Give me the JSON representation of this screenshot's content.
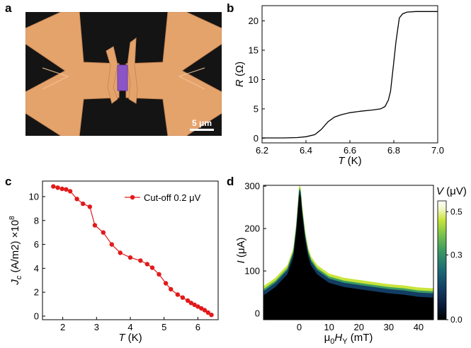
{
  "figure": {
    "panel_labels": [
      "a",
      "b",
      "c",
      "d"
    ],
    "image_a": {
      "scalebar_label": "5 μm",
      "subject": "false-colored SEM micrograph of gold electrodes with a purple flake bridging the gap",
      "colors": {
        "background": "#141414",
        "electrode": "#e5a36c",
        "flake": "#8b55c7"
      }
    }
  },
  "chart_data": [
    {
      "type": "line",
      "panel": "b",
      "xlabel_italic": "T",
      "xlabel_unit": " (K)",
      "ylabel_italic": "R",
      "ylabel_unit": " (Ω)",
      "xlim": [
        6.2,
        7.0
      ],
      "ylim": [
        -0.8,
        22.6
      ],
      "xticks": [
        6.2,
        6.4,
        6.6,
        6.8,
        7.0
      ],
      "xtick_labels": [
        "6.2",
        "6.4",
        "6.6",
        "6.8",
        "7.0"
      ],
      "yticks": [
        0,
        5,
        10,
        15,
        20
      ],
      "ytick_labels": [
        "0",
        "5",
        "10",
        "15",
        "20"
      ],
      "x": [
        6.2,
        6.3,
        6.36,
        6.4,
        6.44,
        6.47,
        6.5,
        6.53,
        6.56,
        6.6,
        6.65,
        6.7,
        6.74,
        6.76,
        6.775,
        6.785,
        6.8,
        6.81,
        6.825,
        6.84,
        6.86,
        6.9,
        7.0
      ],
      "y": [
        0.05,
        0.05,
        0.1,
        0.25,
        0.6,
        1.5,
        2.8,
        3.6,
        4.0,
        4.35,
        4.6,
        4.8,
        5.0,
        5.4,
        6.5,
        8.0,
        13.0,
        16.5,
        20.5,
        21.2,
        21.5,
        21.6,
        21.6
      ],
      "colors": {
        "line": "#000000"
      }
    },
    {
      "type": "line",
      "panel": "c",
      "xlabel_italic": "T",
      "xlabel_unit": " (K)",
      "ylabel_main": "J",
      "ylabel_sub": "c",
      "ylabel_rest": " (A/m2) ×10",
      "ylabel_exp": "8",
      "xlim": [
        1.4,
        6.6
      ],
      "ylim": [
        -0.3,
        11.3
      ],
      "xticks": [
        2,
        3,
        4,
        5,
        6
      ],
      "xtick_labels": [
        "2",
        "3",
        "4",
        "5",
        "6"
      ],
      "yticks": [
        0,
        2,
        4,
        6,
        8,
        10
      ],
      "ytick_labels": [
        "0",
        "2",
        "4",
        "6",
        "8",
        "10"
      ],
      "series": [
        {
          "name": "Cut-off 0.2 μV",
          "x": [
            1.72,
            1.85,
            1.98,
            2.1,
            2.22,
            2.42,
            2.6,
            2.8,
            2.95,
            3.2,
            3.45,
            3.7,
            4.0,
            4.3,
            4.5,
            4.65,
            4.85,
            5.05,
            5.2,
            5.4,
            5.55,
            5.7,
            5.8,
            5.9,
            6.0,
            6.1,
            6.2,
            6.3,
            6.4
          ],
          "values": [
            10.85,
            10.75,
            10.65,
            10.6,
            10.45,
            9.8,
            9.4,
            9.15,
            7.6,
            7.0,
            6.0,
            5.3,
            4.9,
            4.65,
            4.35,
            4.05,
            3.5,
            2.75,
            2.25,
            1.8,
            1.55,
            1.3,
            1.1,
            0.95,
            0.8,
            0.65,
            0.5,
            0.3,
            0.1
          ]
        }
      ],
      "legend_position": "top-right",
      "colors": {
        "series": "#e21a1a"
      }
    },
    {
      "type": "heatmap",
      "panel": "d",
      "xlabel_main": "μ",
      "xlabel_sub0": "0",
      "xlabel_h": "H",
      "xlabel_suby": "Y",
      "xlabel_unit": " (mT)",
      "ylabel_italic": "I",
      "ylabel_unit": " (μA)",
      "xlim": [
        -12,
        45
      ],
      "ylim": [
        -15,
        302
      ],
      "xticks": [
        0,
        10,
        20,
        30,
        40
      ],
      "xtick_labels": [
        "0",
        "10",
        "20",
        "30",
        "40"
      ],
      "yticks": [
        0,
        100,
        200,
        300
      ],
      "ytick_labels": [
        "0",
        "100",
        "200",
        "300"
      ],
      "critical_current_boundary": {
        "field_mT": [
          -12,
          -8,
          -4,
          -2,
          -1,
          0,
          0.5,
          1,
          2,
          3,
          4,
          6,
          8,
          10,
          15,
          20,
          25,
          30,
          35,
          40,
          45
        ],
        "current_uA": [
          50,
          70,
          100,
          140,
          200,
          290,
          282,
          240,
          180,
          140,
          120,
          100,
          90,
          80,
          70,
          65,
          60,
          55,
          52,
          47,
          45
        ]
      },
      "colorbar": {
        "label_italic": "V",
        "label_unit": " (μV)",
        "range": [
          0.0,
          0.55
        ],
        "ticks": [
          0.0,
          0.3,
          0.5
        ],
        "tick_labels": [
          "0.0",
          "0.3",
          "0.5"
        ],
        "colors": [
          "#000000",
          "#0b1a3a",
          "#123d63",
          "#1d6b74",
          "#3b9a62",
          "#7cc34a",
          "#c8e43a",
          "#f2f7c4",
          "#ffffff"
        ]
      }
    }
  ],
  "texts": {
    "cutoff_legend": "Cut-off 0.2 μV"
  }
}
